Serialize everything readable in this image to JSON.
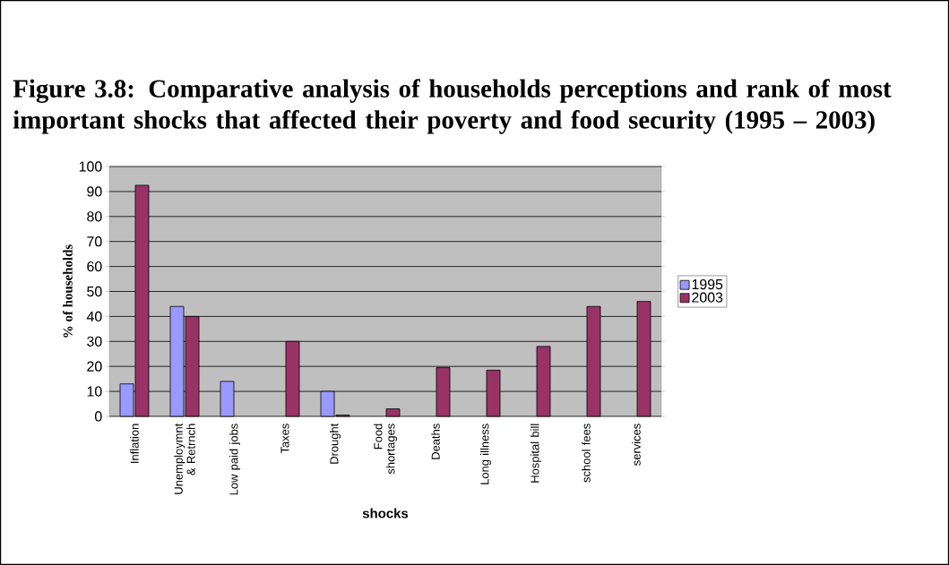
{
  "chart_data": {
    "type": "bar",
    "title": "Figure 3.8: Comparative analysis of households perceptions and rank of most important shocks that affected their poverty and food security (1995 – 2003)",
    "xlabel": "shocks",
    "ylabel": "% of households",
    "categories": [
      "Inflation",
      "Unemploymnt & Retrnch",
      "Low paid jobs",
      "Taxes",
      "Drought",
      "Food shortages",
      "Deaths",
      "Long illness",
      "Hospital bill",
      "school fees",
      "services"
    ],
    "series": [
      {
        "name": "1995",
        "color": "#9999ff",
        "values": [
          13,
          44,
          14,
          null,
          10,
          null,
          null,
          null,
          null,
          null,
          null
        ]
      },
      {
        "name": "2003",
        "color": "#993366",
        "values": [
          92.5,
          40,
          null,
          30,
          0.5,
          3,
          19.5,
          18.5,
          28,
          44,
          46
        ]
      }
    ],
    "ylim": [
      0,
      100
    ],
    "yticks": [
      0,
      10,
      20,
      30,
      40,
      50,
      60,
      70,
      80,
      90,
      100
    ],
    "grid": "y",
    "legend": "right"
  }
}
